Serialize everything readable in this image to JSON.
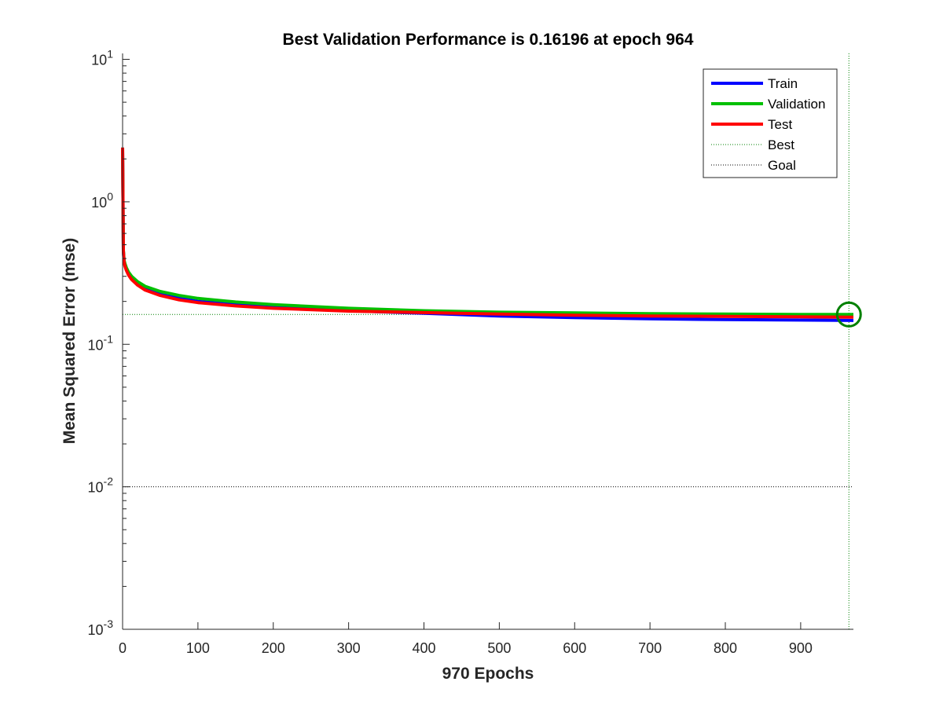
{
  "chart_data": {
    "type": "line",
    "title": "Best Validation Performance is 0.16196 at epoch 964",
    "xlabel": "970 Epochs",
    "ylabel": "Mean Squared Error  (mse)",
    "xlim": [
      0,
      970
    ],
    "ylim": [
      0.001,
      11
    ],
    "yscale": "log",
    "xticks": [
      0,
      100,
      200,
      300,
      400,
      500,
      600,
      700,
      800,
      900
    ],
    "xtick_labels": [
      "0",
      "100",
      "200",
      "300",
      "400",
      "500",
      "600",
      "700",
      "800",
      "900"
    ],
    "yticks": [
      0.001,
      0.01,
      0.1,
      1,
      10
    ],
    "ytick_labels": [
      {
        "base": "10",
        "exp": "-3"
      },
      {
        "base": "10",
        "exp": "-2"
      },
      {
        "base": "10",
        "exp": "-1"
      },
      {
        "base": "10",
        "exp": "0"
      },
      {
        "base": "10",
        "exp": "1"
      }
    ],
    "series": [
      {
        "name": "Train",
        "color": "#0000ff",
        "x": [
          0,
          1,
          2,
          3,
          5,
          8,
          12,
          20,
          30,
          50,
          75,
          100,
          150,
          200,
          300,
          400,
          500,
          600,
          700,
          800,
          900,
          970
        ],
        "y": [
          2.4,
          0.45,
          0.38,
          0.36,
          0.335,
          0.31,
          0.29,
          0.265,
          0.245,
          0.225,
          0.21,
          0.2,
          0.19,
          0.183,
          0.172,
          0.165,
          0.158,
          0.154,
          0.151,
          0.149,
          0.148,
          0.147
        ]
      },
      {
        "name": "Validation",
        "color": "#00c000",
        "x": [
          0,
          1,
          2,
          3,
          5,
          8,
          12,
          20,
          30,
          50,
          75,
          100,
          150,
          200,
          300,
          400,
          500,
          600,
          700,
          800,
          900,
          964,
          970
        ],
        "y": [
          2.4,
          0.46,
          0.39,
          0.37,
          0.345,
          0.32,
          0.3,
          0.275,
          0.255,
          0.235,
          0.22,
          0.21,
          0.198,
          0.19,
          0.179,
          0.172,
          0.168,
          0.166,
          0.164,
          0.163,
          0.162,
          0.16196,
          0.162
        ]
      },
      {
        "name": "Test",
        "color": "#ff0000",
        "x": [
          0,
          1,
          2,
          3,
          5,
          8,
          12,
          20,
          30,
          50,
          75,
          100,
          150,
          200,
          300,
          400,
          500,
          600,
          700,
          800,
          900,
          970
        ],
        "y": [
          2.4,
          0.45,
          0.38,
          0.355,
          0.33,
          0.305,
          0.285,
          0.26,
          0.24,
          0.22,
          0.205,
          0.196,
          0.186,
          0.179,
          0.171,
          0.167,
          0.163,
          0.16,
          0.158,
          0.157,
          0.156,
          0.155
        ]
      }
    ],
    "reference_lines": [
      {
        "name": "Best",
        "color": "#008000",
        "style": "dotted",
        "epoch": 964,
        "value": 0.16196
      },
      {
        "name": "Goal",
        "color": "#000000",
        "style": "dotted",
        "value": 0.01
      }
    ],
    "best_marker": {
      "epoch": 964,
      "value": 0.16196,
      "color": "#008000"
    },
    "legend": {
      "position": "top-right",
      "entries": [
        "Train",
        "Validation",
        "Test",
        "Best",
        "Goal"
      ]
    }
  }
}
